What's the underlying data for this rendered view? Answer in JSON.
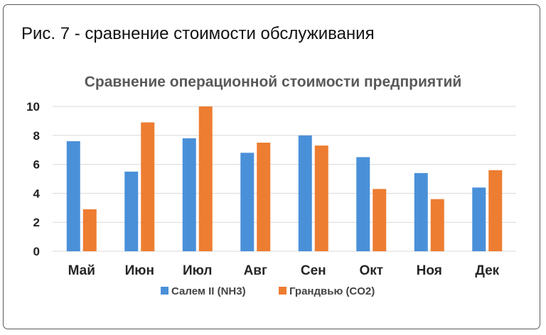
{
  "caption": "Рис. 7 - сравнение стоимости обслуживания",
  "chart_data": {
    "type": "bar",
    "title": "Сравнение операционной стоимости предприятий",
    "categories": [
      "Май",
      "Июн",
      "Июл",
      "Авг",
      "Сен",
      "Окт",
      "Ноя",
      "Дек"
    ],
    "series": [
      {
        "name": "Салем II (NH3)",
        "color": "#4a90d9",
        "values": [
          7.6,
          5.5,
          7.8,
          6.8,
          8.0,
          6.5,
          5.4,
          4.4
        ]
      },
      {
        "name": "Грандвью (CO2)",
        "color": "#ed7d31",
        "values": [
          2.9,
          8.9,
          10.0,
          7.5,
          7.3,
          4.3,
          3.6,
          5.6
        ]
      }
    ],
    "ylim": [
      0,
      10
    ],
    "yticks": [
      0,
      2,
      4,
      6,
      8,
      10
    ],
    "grid": true,
    "legend_position": "bottom"
  }
}
